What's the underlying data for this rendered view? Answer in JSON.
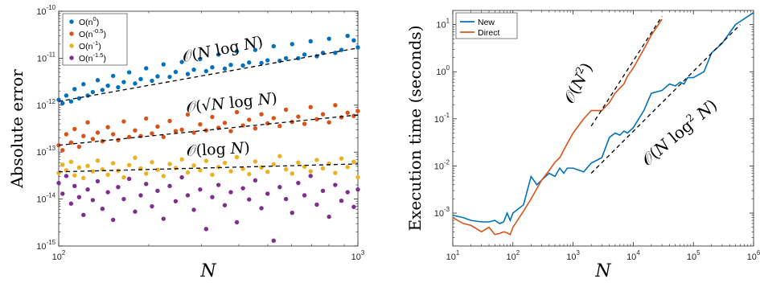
{
  "chart_data": [
    {
      "type": "scatter",
      "xlabel": "N",
      "ylabel": "Absolute error",
      "xscale": "log",
      "yscale": "log",
      "xlim": [
        100,
        1000
      ],
      "ylim": [
        1e-15,
        1e-10
      ],
      "xticks": [
        {
          "v": 100,
          "base": "10",
          "exp": "2"
        },
        {
          "v": 1000,
          "base": "10",
          "exp": "3"
        }
      ],
      "yticks": [
        {
          "v": 1e-15,
          "base": "10",
          "exp": "-15"
        },
        {
          "v": 1e-14,
          "base": "10",
          "exp": "-14"
        },
        {
          "v": 1e-13,
          "base": "10",
          "exp": "-13"
        },
        {
          "v": 1e-12,
          "base": "10",
          "exp": "-12"
        },
        {
          "v": 1e-11,
          "base": "10",
          "exp": "-11"
        },
        {
          "v": 1e-10,
          "base": "10",
          "exp": "-10"
        }
      ],
      "legend": {
        "placement": "top-left",
        "entries": [
          {
            "base": "O(n",
            "exp": "0",
            "tail": ")"
          },
          {
            "base": "O(n",
            "exp": "-0.5",
            "tail": ")"
          },
          {
            "base": "O(n",
            "exp": "-1",
            "tail": ")"
          },
          {
            "base": "O(n",
            "exp": "-1.5",
            "tail": ")"
          }
        ]
      },
      "colors": [
        "#0072bd",
        "#d95319",
        "#edb120",
        "#7e2f8e"
      ],
      "series": [
        {
          "name": "O(n^0)",
          "color": "#0072bd",
          "x": [
            100,
            103,
            106,
            110,
            113,
            117,
            121,
            125,
            130,
            135,
            140,
            146,
            152,
            158,
            165,
            172,
            180,
            188,
            196,
            205,
            214,
            224,
            235,
            246,
            258,
            270,
            283,
            297,
            311,
            326,
            342,
            359,
            376,
            394,
            413,
            433,
            454,
            476,
            499,
            523,
            548,
            575,
            603,
            632,
            663,
            695,
            729,
            764,
            801,
            840,
            881,
            924,
            969,
            1000
          ],
          "y": [
            1.3e-12,
            1.1e-12,
            1.6e-12,
            1.2e-12,
            2.2e-12,
            1.4e-12,
            2.8e-12,
            1.6e-12,
            1.9e-12,
            3.4e-12,
            2.1e-12,
            2.6e-12,
            4.2e-12,
            2.4e-12,
            3.1e-12,
            5e-12,
            2.9e-12,
            3.6e-12,
            6.1e-12,
            3.3e-12,
            4.1e-12,
            7.4e-12,
            4e-12,
            5.1e-12,
            8.3e-12,
            4.6e-12,
            5.7e-12,
            9.6e-12,
            5.3e-12,
            6.4e-12,
            1.2e-11,
            6e-12,
            7.2e-12,
            1.4e-11,
            7e-12,
            8.1e-12,
            1.5e-11,
            7.9e-12,
            9e-12,
            1.8e-11,
            8.8e-12,
            1e-11,
            2e-11,
            1e-11,
            1.2e-11,
            2.3e-11,
            1.1e-11,
            1.3e-11,
            2.6e-11,
            1.3e-11,
            1.5e-11,
            3e-11,
            2.4e-11,
            1.7e-11
          ]
        },
        {
          "name": "O(n^-0.5)",
          "color": "#d95319",
          "x": [
            100,
            103,
            106,
            110,
            113,
            117,
            121,
            125,
            130,
            135,
            140,
            146,
            152,
            158,
            165,
            172,
            180,
            188,
            196,
            205,
            214,
            224,
            235,
            246,
            258,
            270,
            283,
            297,
            311,
            326,
            342,
            359,
            376,
            394,
            413,
            433,
            454,
            476,
            499,
            523,
            548,
            575,
            603,
            632,
            663,
            695,
            729,
            764,
            801,
            840,
            881,
            924,
            969,
            1000
          ],
          "y": [
            1.4e-13,
            1.1e-13,
            2.4e-13,
            1.6e-13,
            3.1e-13,
            1.3e-13,
            2.2e-13,
            4.3e-13,
            1.9e-13,
            2.6e-13,
            1.7e-13,
            3.4e-13,
            2.4e-13,
            1.8e-13,
            4.5e-13,
            2.1e-13,
            2.9e-13,
            2.2e-13,
            5.2e-13,
            2.5e-13,
            3.5e-13,
            2.1e-13,
            4.6e-13,
            2.8e-13,
            3e-13,
            6.3e-13,
            2.6e-13,
            3.9e-13,
            2.9e-13,
            5.6e-13,
            3.3e-13,
            4.2e-13,
            2.8e-13,
            7.1e-13,
            3.7e-13,
            4.9e-13,
            3.2e-13,
            6.4e-13,
            4.1e-13,
            5.3e-13,
            3.6e-13,
            8e-13,
            4.4e-13,
            5.7e-13,
            4e-13,
            9.1e-13,
            5e-13,
            6.4e-13,
            4.3e-13,
            1e-12,
            5.5e-13,
            6.9e-13,
            5.9e-13,
            7.5e-13
          ]
        },
        {
          "name": "O(n^-1)",
          "color": "#edb120",
          "x": [
            100,
            103,
            106,
            110,
            113,
            117,
            121,
            125,
            130,
            135,
            140,
            146,
            152,
            158,
            165,
            172,
            180,
            188,
            196,
            205,
            214,
            224,
            235,
            246,
            258,
            270,
            283,
            297,
            311,
            326,
            342,
            359,
            376,
            394,
            413,
            433,
            454,
            476,
            499,
            523,
            548,
            575,
            603,
            632,
            663,
            695,
            729,
            764,
            801,
            840,
            881,
            924,
            969,
            1000
          ],
          "y": [
            3.6e-14,
            5.4e-14,
            4.1e-14,
            6.2e-14,
            3.2e-14,
            4.7e-14,
            2.8e-14,
            5.1e-14,
            3.9e-14,
            6.6e-14,
            4.3e-14,
            3.3e-14,
            5.8e-14,
            4e-14,
            2.9e-14,
            5.3e-14,
            7.6e-14,
            4.5e-14,
            3.5e-14,
            6.1e-14,
            4.2e-14,
            3.1e-14,
            5.6e-14,
            4.6e-14,
            7e-14,
            3.7e-14,
            5.2e-14,
            4.1e-14,
            6.5e-14,
            3.3e-14,
            4.8e-14,
            5.9e-14,
            3.9e-14,
            7.8e-14,
            4.4e-14,
            3.4e-14,
            6.3e-14,
            4.7e-14,
            3.8e-14,
            5.5e-14,
            8.2e-14,
            4.3e-14,
            3.5e-14,
            6e-14,
            4.9e-14,
            3.9e-14,
            6.8e-14,
            4.5e-14,
            5.7e-14,
            3.6e-14,
            7.3e-14,
            4.8e-14,
            6.2e-14,
            2.9e-14
          ]
        },
        {
          "name": "O(n^-1.5)",
          "color": "#7e2f8e",
          "x": [
            100,
            103,
            106,
            110,
            113,
            117,
            121,
            125,
            130,
            135,
            140,
            146,
            152,
            158,
            165,
            172,
            180,
            188,
            196,
            205,
            214,
            224,
            235,
            246,
            258,
            270,
            283,
            297,
            311,
            326,
            342,
            359,
            376,
            394,
            413,
            433,
            454,
            476,
            499,
            523,
            548,
            575,
            603,
            632,
            663,
            695,
            729,
            764,
            801,
            840,
            881,
            924,
            969,
            1000
          ],
          "y": [
            2.2e-14,
            1.3e-14,
            3.1e-14,
            8e-15,
            1.9e-14,
            1.1e-14,
            4.6e-15,
            1.6e-14,
            9.5e-15,
            2.4e-14,
            6.2e-15,
            1.4e-14,
            3.6e-15,
            1.8e-14,
            1e-14,
            2.7e-14,
            5.4e-15,
            1.2e-14,
            2.1e-14,
            7e-15,
            1.5e-14,
            3.8e-15,
            1.9e-14,
            9e-15,
            2.9e-14,
            1.2e-14,
            5.9e-15,
            1.6e-14,
            2.3e-15,
            1.1e-14,
            2e-14,
            7.4e-15,
            1.4e-14,
            3.2e-15,
            1.7e-14,
            9.8e-15,
            2.5e-14,
            6.4e-15,
            1.3e-14,
            1.3e-15,
            1.8e-14,
            1e-14,
            5.1e-15,
            2.2e-14,
            1.2e-14,
            3.1e-14,
            7.6e-15,
            1.5e-14,
            4.2e-15,
            2e-14,
            9.2e-15,
            1.4e-14,
            6.8e-15,
            1.6e-14
          ]
        }
      ],
      "reference_lines": [
        {
          "label": "O(N log N)",
          "x": [
            100,
            1000
          ],
          "y": [
            1.2e-12,
            1.65e-11
          ]
        },
        {
          "label": "O(√N log N)",
          "x": [
            100,
            1000
          ],
          "y": [
            1.4e-13,
            6.2e-13
          ]
        },
        {
          "label": "O(log N)",
          "x": [
            100,
            1000
          ],
          "y": [
            3.8e-14,
            5.6e-14
          ]
        }
      ],
      "annotations": [
        {
          "label": "O(N log N)",
          "parts": [
            "𝒪(",
            "N",
            " log ",
            "N",
            ")"
          ]
        },
        {
          "label": "O(√N log N)",
          "parts": [
            "𝒪(√",
            "N",
            " log ",
            "N",
            ")"
          ]
        },
        {
          "label": "O(log N)",
          "parts": [
            "𝒪(log ",
            "N",
            ")"
          ]
        }
      ]
    },
    {
      "type": "line",
      "xlabel": "N",
      "ylabel": "Execution time (seconds)",
      "xscale": "log",
      "yscale": "log",
      "xlim": [
        10,
        1000000
      ],
      "ylim": [
        0.0002,
        20
      ],
      "xticks": [
        {
          "v": 10,
          "base": "10",
          "exp": "1"
        },
        {
          "v": 100,
          "base": "10",
          "exp": "2"
        },
        {
          "v": 1000,
          "base": "10",
          "exp": "3"
        },
        {
          "v": 10000,
          "base": "10",
          "exp": "4"
        },
        {
          "v": 100000,
          "base": "10",
          "exp": "5"
        },
        {
          "v": 1000000,
          "base": "10",
          "exp": "6"
        }
      ],
      "yticks": [
        {
          "v": 0.001,
          "base": "10",
          "exp": "-3"
        },
        {
          "v": 0.01,
          "base": "10",
          "exp": "-2"
        },
        {
          "v": 0.1,
          "base": "10",
          "exp": "-1"
        },
        {
          "v": 1,
          "base": "10",
          "exp": "0"
        },
        {
          "v": 10,
          "base": "10",
          "exp": "1"
        }
      ],
      "legend": {
        "placement": "top-left",
        "entries": [
          "New",
          "Direct"
        ]
      },
      "series": [
        {
          "name": "New",
          "color": "#0072bd",
          "x": [
            10,
            15,
            20,
            30,
            40,
            50,
            60,
            70,
            80,
            90,
            100,
            150,
            200,
            250,
            300,
            400,
            500,
            600,
            700,
            800,
            1000,
            1500,
            2000,
            3000,
            4000,
            5000,
            6000,
            7000,
            8000,
            10000,
            15000,
            20000,
            30000,
            40000,
            50000,
            60000,
            70000,
            80000,
            100000,
            150000,
            200000,
            300000,
            500000,
            1000000
          ],
          "y": [
            0.0009,
            0.0008,
            0.0007,
            0.00065,
            0.00065,
            0.0007,
            0.0006,
            0.00065,
            0.001,
            0.0007,
            0.001,
            0.0015,
            0.006,
            0.004,
            0.005,
            0.007,
            0.006,
            0.009,
            0.007,
            0.009,
            0.009,
            0.0075,
            0.0115,
            0.015,
            0.04,
            0.05,
            0.045,
            0.055,
            0.05,
            0.065,
            0.15,
            0.35,
            0.4,
            0.55,
            0.5,
            0.6,
            0.55,
            0.75,
            0.75,
            1.0,
            2.5,
            4.0,
            10.0,
            18.0
          ]
        },
        {
          "name": "Direct",
          "color": "#d95319",
          "x": [
            10,
            15,
            20,
            30,
            40,
            50,
            60,
            70,
            80,
            90,
            100,
            150,
            200,
            300,
            400,
            500,
            600,
            800,
            1000,
            1500,
            2000,
            3000,
            4000,
            5000,
            6000,
            7000,
            8000,
            10000,
            15000,
            20000,
            30000
          ],
          "y": [
            0.0008,
            0.0006,
            0.00055,
            0.0004,
            0.0005,
            0.00035,
            0.00037,
            0.0004,
            0.00038,
            0.00035,
            0.0005,
            0.0011,
            0.002,
            0.005,
            0.008,
            0.012,
            0.015,
            0.03,
            0.05,
            0.1,
            0.15,
            0.15,
            0.22,
            0.35,
            0.45,
            0.55,
            0.8,
            1.2,
            3.0,
            6.0,
            13.0
          ]
        }
      ],
      "reference_lines": [
        {
          "label": "O(N^2)",
          "x": [
            2000,
            30000
          ],
          "y": [
            0.07,
            15
          ]
        },
        {
          "label": "O(N log^2 N)",
          "x": [
            2000,
            600000
          ],
          "y": [
            0.007,
            10
          ]
        }
      ],
      "annotations": [
        {
          "label": "O(N^2)",
          "parts": [
            "𝒪(",
            "N",
            "2",
            ")"
          ]
        },
        {
          "label": "O(N log^2 N)",
          "parts": [
            "𝒪(",
            "N",
            " log",
            "2",
            " N",
            ")"
          ]
        }
      ]
    }
  ]
}
